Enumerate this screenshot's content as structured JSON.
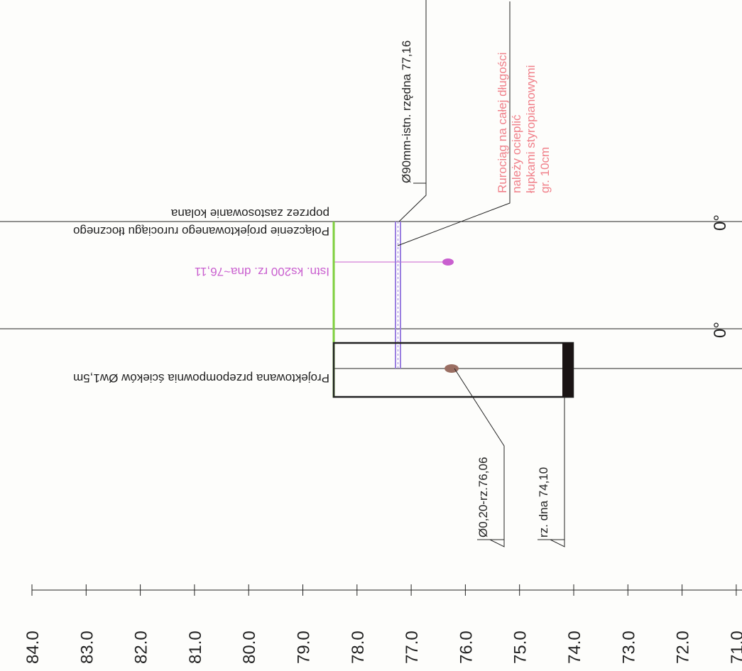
{
  "scale": {
    "labels": [
      "84.0",
      "83.0",
      "82.0",
      "81.0",
      "80.0",
      "79.0",
      "78.0",
      "77.0",
      "76.0",
      "75.0",
      "74.0",
      "73.0",
      "72.0",
      "71.0"
    ]
  },
  "annotations": {
    "pipe_existing": "Ø90mm-istn. rzędna 77,16",
    "note_line1": "Rurociąg na całej długości",
    "note_line2": "należy ocieplić",
    "note_line3": "łupkami styropianowymi",
    "note_line4": "gr. 10cm",
    "connection_line1": "Połączenie projektowanego rurociągu tłocznego",
    "connection_line2": "poprzez zastosowanie kolana",
    "ks200": "Istn. ks200 rz. dna~76,11",
    "pumping_station": "Projektowana przepompownia ścieków Øw1,5m",
    "pipe_020": "Ø0,20-rz.76,06",
    "bottom_level": "rz. dna 74,10",
    "degree_top": "0°",
    "degree_bottom": "0°"
  },
  "colors": {
    "line": "#222222",
    "green": "#7fcf3f",
    "purple_pipe": "#9a7fe0",
    "pink": "#c95fcf",
    "note": "#f0808a",
    "dot_brown": "#9a6e62",
    "fill_black": "#1a1414"
  }
}
